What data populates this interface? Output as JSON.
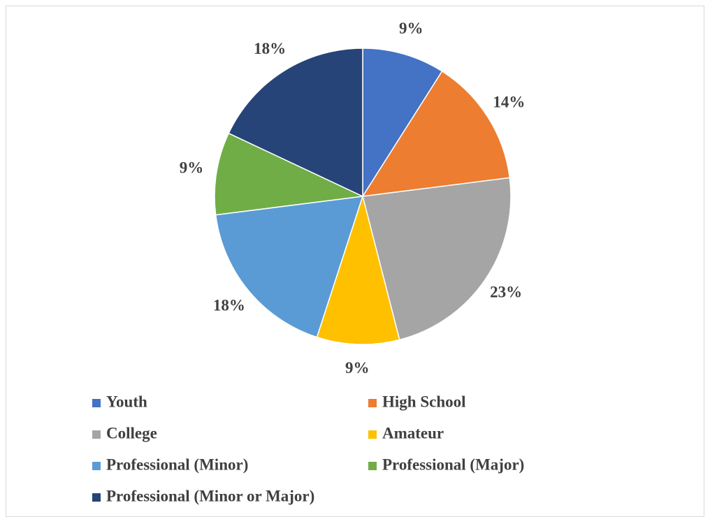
{
  "chart_data": {
    "type": "pie",
    "categories": [
      "Youth",
      "High School",
      "College",
      "Amateur",
      "Professional (Minor)",
      "Professional (Major)",
      "Professional (Minor or Major)"
    ],
    "values": [
      9,
      14,
      23,
      9,
      18,
      9,
      18
    ],
    "value_labels": [
      "9%",
      "14%",
      "23%",
      "9%",
      "18%",
      "9%",
      "18%"
    ],
    "colors": [
      "#4472c4",
      "#ed7d31",
      "#a5a5a5",
      "#ffc000",
      "#5b9bd5",
      "#70ad47",
      "#264478"
    ],
    "legend": "bottom"
  }
}
